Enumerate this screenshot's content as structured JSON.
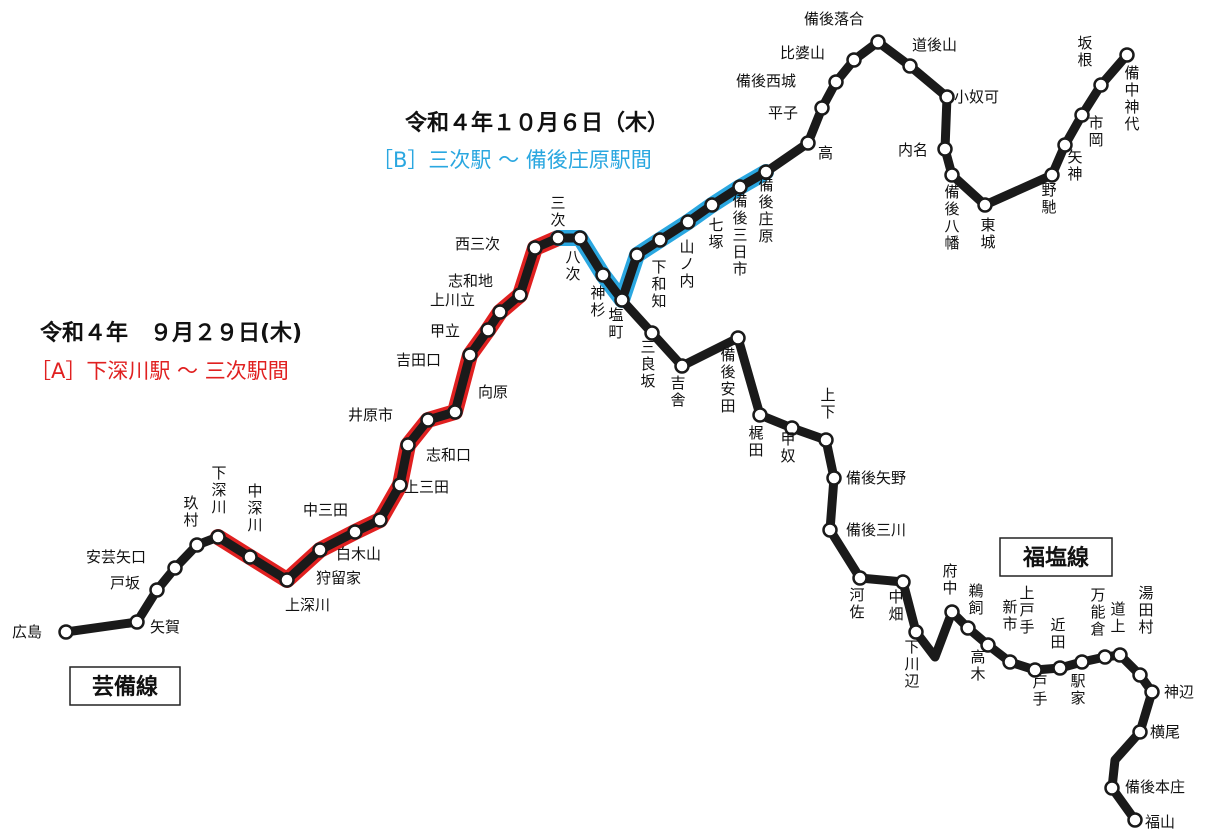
{
  "colors": {
    "line": "#1a1a1a",
    "section_a": "#e02020",
    "section_b": "#2aa7e0",
    "station_fill": "#ffffff"
  },
  "lines": {
    "geibi": "芸備線",
    "fukuen": "福塩線"
  },
  "section_a": {
    "date": "令和４年　９月２９日(木)",
    "label": "［A］下深川駅 ～ 三次駅間"
  },
  "section_b": {
    "date": "令和４年１０月６日（木）",
    "label": "［B］三次駅 ～ 備後庄原駅間"
  },
  "stations": {
    "hiroshima": "広島",
    "yaga": "矢賀",
    "tosaka": "戸坂",
    "aki_yaguchi": "安芸矢口",
    "kumura": "玖村",
    "shimofukawa": "下深川",
    "nakafukawa": "中深川",
    "kamifukawa": "上深川",
    "karuga": "狩留家",
    "shirakiyama": "白木山",
    "nakamita": "中三田",
    "kamimita": "上三田",
    "shiwaguchi": "志和口",
    "iharaichi": "井原市",
    "mukaihara": "向原",
    "yoshidaguchi": "吉田口",
    "koudachi": "甲立",
    "kamikawadachi": "上川立",
    "shiwaji": "志和地",
    "nishimiyoshi": "西三次",
    "miyoshi": "三次",
    "yatsugi": "八次",
    "kamisugi": "神杉",
    "shimowachi": "下和知",
    "yamanouchi": "山ノ内",
    "nanatsuka": "七塚",
    "bingo_mikkaichi": "備後三日市",
    "bingo_shobara": "備後庄原",
    "taka": "高",
    "hirako": "平子",
    "bingo_saijo": "備後西城",
    "hibayama": "比婆山",
    "bingo_ochiai": "備後落合",
    "dogoyama": "道後山",
    "oyoka": "小奴可",
    "uchina": "内名",
    "bingo_yawata": "備後八幡",
    "tojo": "東城",
    "nochi": "野馳",
    "yagami": "矢神",
    "ichioka": "市岡",
    "sakane": "坂根",
    "bicchu_kojiro": "備中神代",
    "shiomachi": "塩町",
    "mirasaka": "三良坂",
    "kisa": "吉舎",
    "bingo_yasuda": "備後安田",
    "kajita": "梶田",
    "kounu": "甲奴",
    "joge": "上下",
    "bingo_yano": "備後矢野",
    "bingo_mikawa": "備後三川",
    "kawasa": "河佐",
    "nakabatake": "中畑",
    "shimokawabe": "下川辺",
    "fuchu": "府中",
    "unokai": "鵜飼",
    "takagi": "高木",
    "shinichi": "新市",
    "kamitode": "上戸手",
    "tode": "戸手",
    "chikata": "近田",
    "ekiya": "駅家",
    "mannoukura": "万能倉",
    "michinoue": "道上",
    "yudamura": "湯田村",
    "kannabe": "神辺",
    "yokoo": "横尾",
    "bingo_honjo": "備後本庄",
    "fukuyama": "福山"
  }
}
